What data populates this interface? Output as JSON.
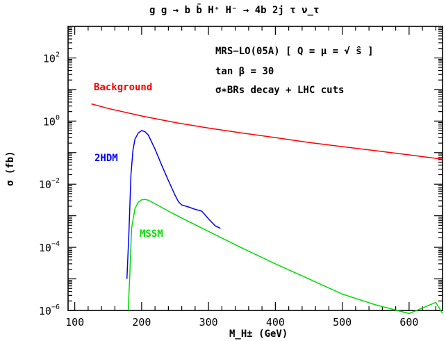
{
  "chart_data": {
    "type": "line",
    "title": "g g → b b̄ H⁺ H⁻ → 4b 2j τ ν_τ",
    "xlabel": "M_H± (GeV)",
    "ylabel": "σ (fb)",
    "xlim": [
      90,
      650
    ],
    "ylim": [
      1e-06,
      1000
    ],
    "yscale": "log",
    "grid": false,
    "x_ticks": [
      {
        "value": 100,
        "label": "100"
      },
      {
        "value": 200,
        "label": "200"
      },
      {
        "value": 300,
        "label": "300"
      },
      {
        "value": 400,
        "label": "400"
      },
      {
        "value": 500,
        "label": "500"
      },
      {
        "value": 600,
        "label": "600"
      }
    ],
    "y_ticks": [
      {
        "value": 1e-06,
        "base": "10",
        "exp": "−6"
      },
      {
        "value": 0.0001,
        "base": "10",
        "exp": "−4"
      },
      {
        "value": 0.01,
        "base": "10",
        "exp": "−2"
      },
      {
        "value": 1,
        "base": "10",
        "exp": "0"
      },
      {
        "value": 100,
        "base": "10",
        "exp": "2"
      }
    ],
    "annotations": [
      "MRS−LO(05A) [ Q = μ = √ ŝ ]",
      "tan β = 30",
      "σ∗BRs decay + LHC cuts"
    ],
    "series": [
      {
        "name": "Background",
        "color": "#ff0000",
        "x": [
          125,
          150,
          200,
          250,
          300,
          350,
          400,
          450,
          500,
          550,
          600,
          650
        ],
        "y": [
          3.5,
          2.5,
          1.45,
          0.9,
          0.6,
          0.42,
          0.3,
          0.21,
          0.155,
          0.115,
          0.085,
          0.062
        ]
      },
      {
        "name": "2HDM",
        "color": "#0000ff",
        "x": [
          178,
          181,
          184,
          187,
          190,
          195,
          200,
          205,
          210,
          220,
          230,
          240,
          250,
          255,
          260,
          270,
          280,
          290,
          300,
          310,
          318
        ],
        "y": [
          1e-05,
          0.0003,
          0.02,
          0.12,
          0.27,
          0.42,
          0.5,
          0.46,
          0.36,
          0.13,
          0.04,
          0.013,
          0.0045,
          0.0028,
          0.0022,
          0.0019,
          0.0016,
          0.0014,
          0.0008,
          0.00048,
          0.0004
        ]
      },
      {
        "name": "MSSM",
        "color": "#00dd00",
        "x": [
          180,
          182,
          185,
          190,
          195,
          200,
          205,
          210,
          220,
          240,
          260,
          300,
          350,
          400,
          450,
          500,
          550,
          600,
          640,
          650
        ],
        "y": [
          1e-06,
          1e-05,
          0.0004,
          0.0017,
          0.0027,
          0.0032,
          0.0033,
          0.0031,
          0.0024,
          0.0014,
          0.00085,
          0.00032,
          9.5e-05,
          3e-05,
          1e-05,
          3.3e-06,
          1.5e-06,
          8e-07,
          1.8e-06,
          8e-07
        ]
      }
    ]
  }
}
